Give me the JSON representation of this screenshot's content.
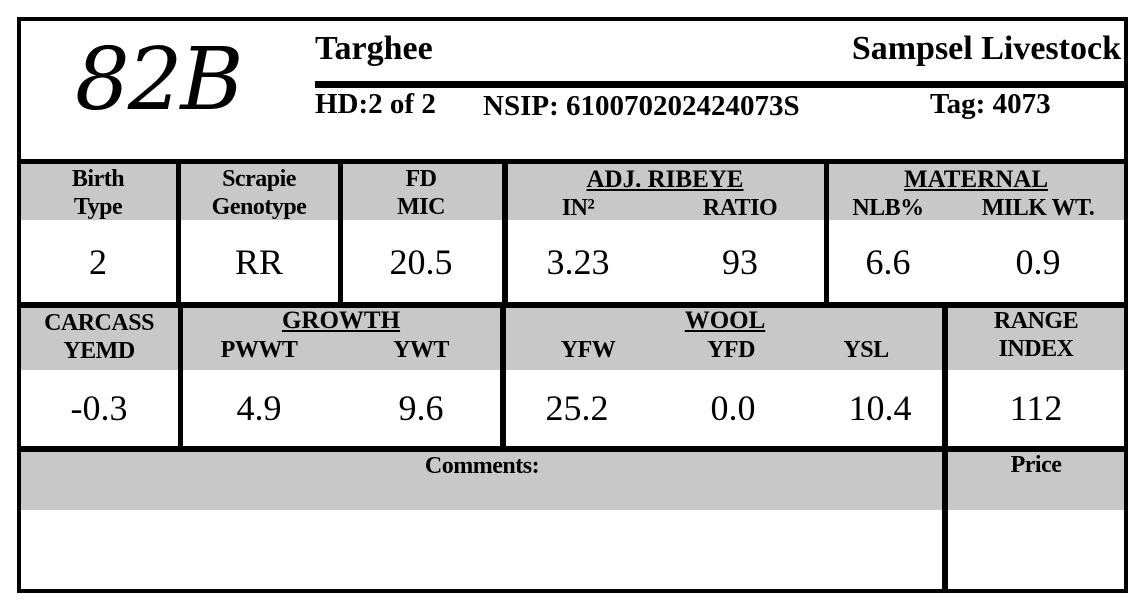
{
  "header": {
    "lot": "82B",
    "breed": "Targhee",
    "owner": "Sampsel Livestock",
    "hd": "HD:2 of 2",
    "nsip": "NSIP: 610070202424073S",
    "tag": "Tag: 4073"
  },
  "row1": {
    "birth_type": {
      "label": "Birth Type",
      "value": "2"
    },
    "scrapie": {
      "label": "Scrapie Genotype",
      "value": "RR"
    },
    "fd": {
      "label": "FD MIC",
      "value": "20.5"
    },
    "ribeye": {
      "title": "ADJ. RIBEYE",
      "columns": [
        {
          "label": "IN²",
          "value": "3.23"
        },
        {
          "label": "RATIO",
          "value": "93"
        }
      ]
    },
    "maternal": {
      "title": "MATERNAL",
      "columns": [
        {
          "label": "NLB%",
          "value": "6.6"
        },
        {
          "label": "MILK WT.",
          "value": "0.9"
        }
      ]
    }
  },
  "row2": {
    "carcass": {
      "label": "CARCASS YEMD",
      "value": "-0.3"
    },
    "growth": {
      "title": "GROWTH",
      "columns": [
        {
          "label": "PWWT",
          "value": "4.9"
        },
        {
          "label": "YWT",
          "value": "9.6"
        }
      ]
    },
    "wool": {
      "title": "WOOL",
      "columns": [
        {
          "label": "YFW",
          "value": "25.2"
        },
        {
          "label": "YFD",
          "value": "0.0"
        },
        {
          "label": "YSL",
          "value": "10.4"
        }
      ]
    },
    "range": {
      "label": "RANGE INDEX",
      "value": "112"
    }
  },
  "row3": {
    "comments": "Comments:",
    "price": "Price"
  }
}
